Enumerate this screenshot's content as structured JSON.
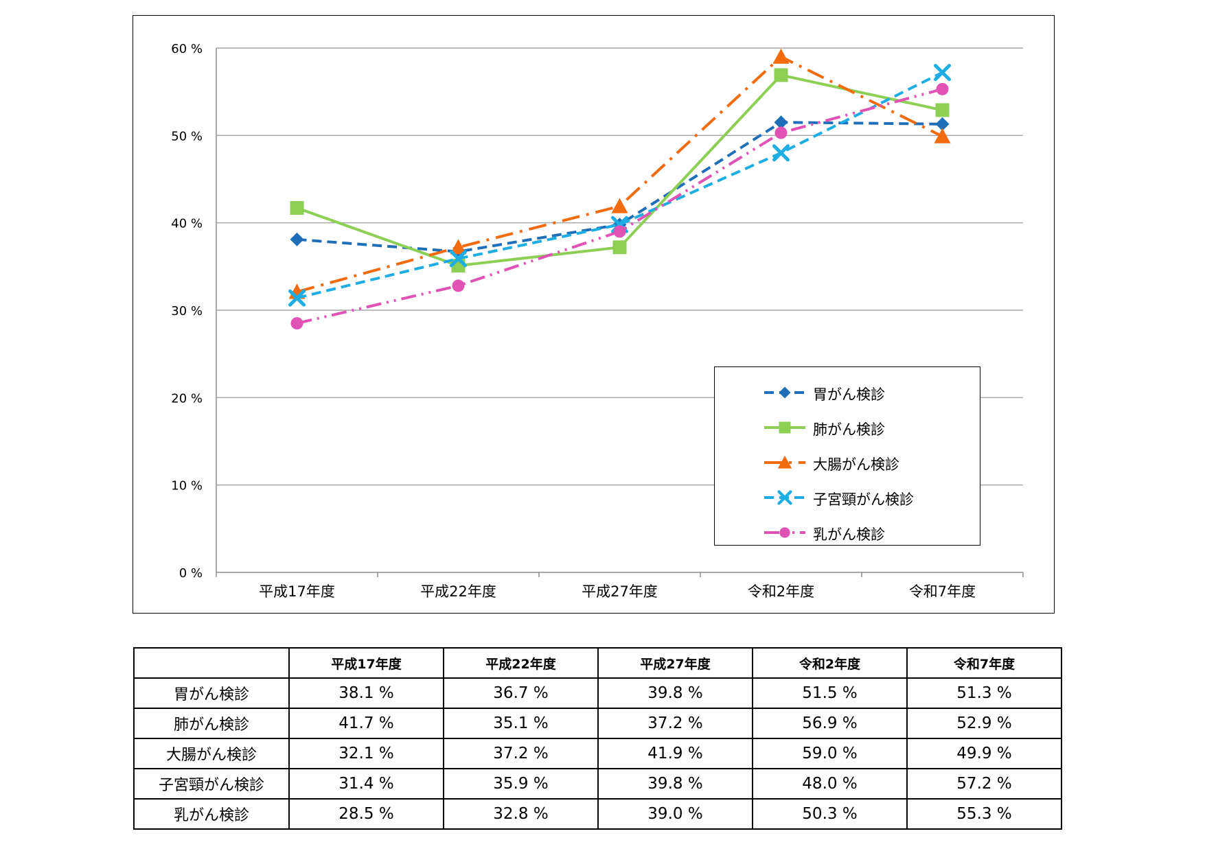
{
  "chart_data": {
    "type": "line",
    "title": "",
    "xlabel": "",
    "ylabel": "",
    "categories": [
      "平成17年度",
      "平成22年度",
      "平成27年度",
      "令和2年度",
      "令和7年度"
    ],
    "ylim": [
      0,
      60
    ],
    "yticks": [
      0,
      10,
      20,
      30,
      40,
      50,
      60
    ],
    "ytick_labels": [
      "0 %",
      "10 %",
      "20 %",
      "30 %",
      "40 %",
      "50 %",
      "60 %"
    ],
    "grid": true,
    "legend_position": "bottom-right",
    "series": [
      {
        "name": "胃がん検診",
        "values": [
          38.1,
          36.7,
          39.8,
          51.5,
          51.3
        ],
        "color": "#1F6EB8",
        "marker": "diamond",
        "dash": "dash"
      },
      {
        "name": "肺がん検診",
        "values": [
          41.7,
          35.1,
          37.2,
          56.9,
          52.9
        ],
        "color": "#8DCF55",
        "marker": "square",
        "dash": "solid"
      },
      {
        "name": "大腸がん検診",
        "values": [
          32.1,
          37.2,
          41.9,
          59.0,
          49.9
        ],
        "color": "#F26B0F",
        "marker": "triangle",
        "dash": "longdashdot"
      },
      {
        "name": "子宮頸がん検診",
        "values": [
          31.4,
          35.9,
          39.8,
          48.0,
          57.2
        ],
        "color": "#1EADE3",
        "marker": "x",
        "dash": "dash"
      },
      {
        "name": "乳がん検診",
        "values": [
          28.5,
          32.8,
          39.0,
          50.3,
          55.3
        ],
        "color": "#E052B4",
        "marker": "circle",
        "dash": "longdashdotdot"
      }
    ]
  },
  "table": {
    "headers": [
      "",
      "平成17年度",
      "平成22年度",
      "平成27年度",
      "令和2年度",
      "令和7年度"
    ],
    "rows": [
      {
        "label": "胃がん検診",
        "cells": [
          "38.1 %",
          "36.7 %",
          "39.8 %",
          "51.5 %",
          "51.3 %"
        ]
      },
      {
        "label": "肺がん検診",
        "cells": [
          "41.7 %",
          "35.1 %",
          "37.2 %",
          "56.9 %",
          "52.9 %"
        ]
      },
      {
        "label": "大腸がん検診",
        "cells": [
          "32.1 %",
          "37.2 %",
          "41.9 %",
          "59.0 %",
          "49.9 %"
        ]
      },
      {
        "label": "子宮頸がん検診",
        "cells": [
          "31.4 %",
          "35.9 %",
          "39.8 %",
          "48.0 %",
          "57.2 %"
        ]
      },
      {
        "label": "乳がん検診",
        "cells": [
          "28.5 %",
          "32.8 %",
          "39.0 %",
          "50.3 %",
          "55.3 %"
        ]
      }
    ]
  }
}
